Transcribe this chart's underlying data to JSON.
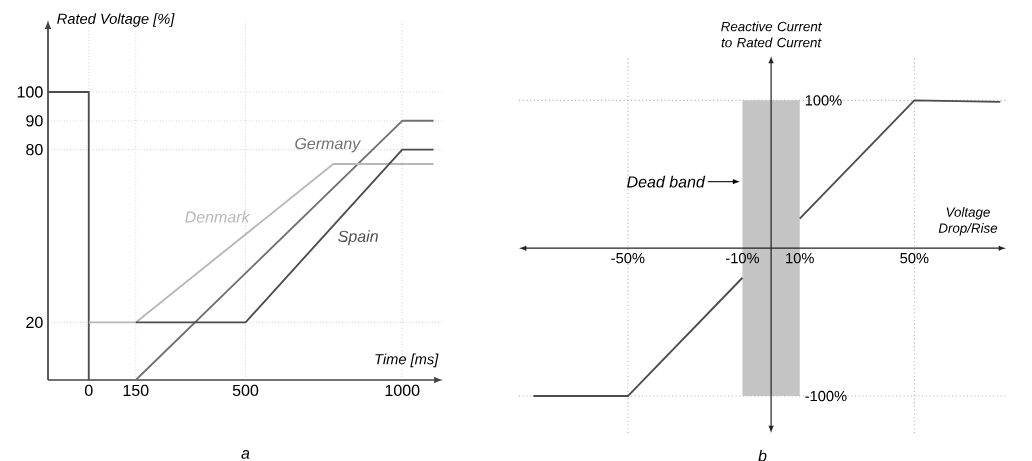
{
  "chart_data": [
    {
      "type": "line",
      "xlabel": "Time [ms]",
      "ylabel": "Rated Voltage [%]",
      "xlim": [
        -130,
        1130
      ],
      "ylim": [
        0,
        125
      ],
      "xticks": [
        0,
        150,
        500,
        1000
      ],
      "yticks": [
        20,
        80,
        90,
        100
      ],
      "grid": true,
      "annotations": [
        "a"
      ],
      "series": [
        {
          "color": "#4d4d4d",
          "x": [
            -130,
            0,
            0
          ],
          "values": [
            100,
            100,
            0
          ]
        },
        {
          "name": "Germany",
          "color": "#707070",
          "x": [
            150,
            1000,
            1100
          ],
          "values": [
            0,
            90,
            90
          ]
        },
        {
          "name": "Denmark",
          "color": "#b8b8b8",
          "x": [
            0,
            150,
            780,
            1100
          ],
          "values": [
            20,
            20,
            75,
            75
          ]
        },
        {
          "name": "Spain",
          "color": "#4d4d4d",
          "x": [
            150,
            500,
            1000,
            1100
          ],
          "values": [
            20,
            20,
            80,
            80
          ]
        }
      ]
    },
    {
      "type": "line",
      "xlabel": "Voltage Drop/Rise",
      "ylabel": "Reactive Current to Rated Current",
      "xlim": [
        -88,
        82
      ],
      "ylim": [
        -125,
        130
      ],
      "xticks": [
        {
          "value": -50,
          "label": "-50%"
        },
        {
          "value": -10,
          "label": "-10%"
        },
        {
          "value": 10,
          "label": "10%"
        },
        {
          "value": 50,
          "label": "50%"
        }
      ],
      "yticks": [
        {
          "value": -100,
          "label": "-100%"
        },
        {
          "value": 100,
          "label": "100%"
        }
      ],
      "annotations": [
        "b"
      ],
      "bands": [
        {
          "axis": "x",
          "from": -10,
          "to": 10,
          "label": "Dead band",
          "color": "#c4c4c4"
        }
      ],
      "ref_lines": [
        {
          "axis": "x",
          "value": -50,
          "line_style": "dotted",
          "color": "#b0b0b0"
        },
        {
          "axis": "x",
          "value": 50,
          "line_style": "dotted",
          "color": "#b0b0b0"
        },
        {
          "axis": "y",
          "value": 100,
          "line_style": "dotted",
          "color": "#b0b0b0"
        },
        {
          "axis": "y",
          "value": -100,
          "line_style": "dotted",
          "color": "#b0b0b0"
        }
      ],
      "series": [
        {
          "color": "#4d4d4d",
          "x": [
            -83,
            -50,
            -10
          ],
          "values": [
            -100,
            -100,
            -20
          ]
        },
        {
          "color": "#4d4d4d",
          "x": [
            10,
            50,
            80
          ],
          "values": [
            20,
            100,
            99
          ]
        }
      ]
    }
  ]
}
